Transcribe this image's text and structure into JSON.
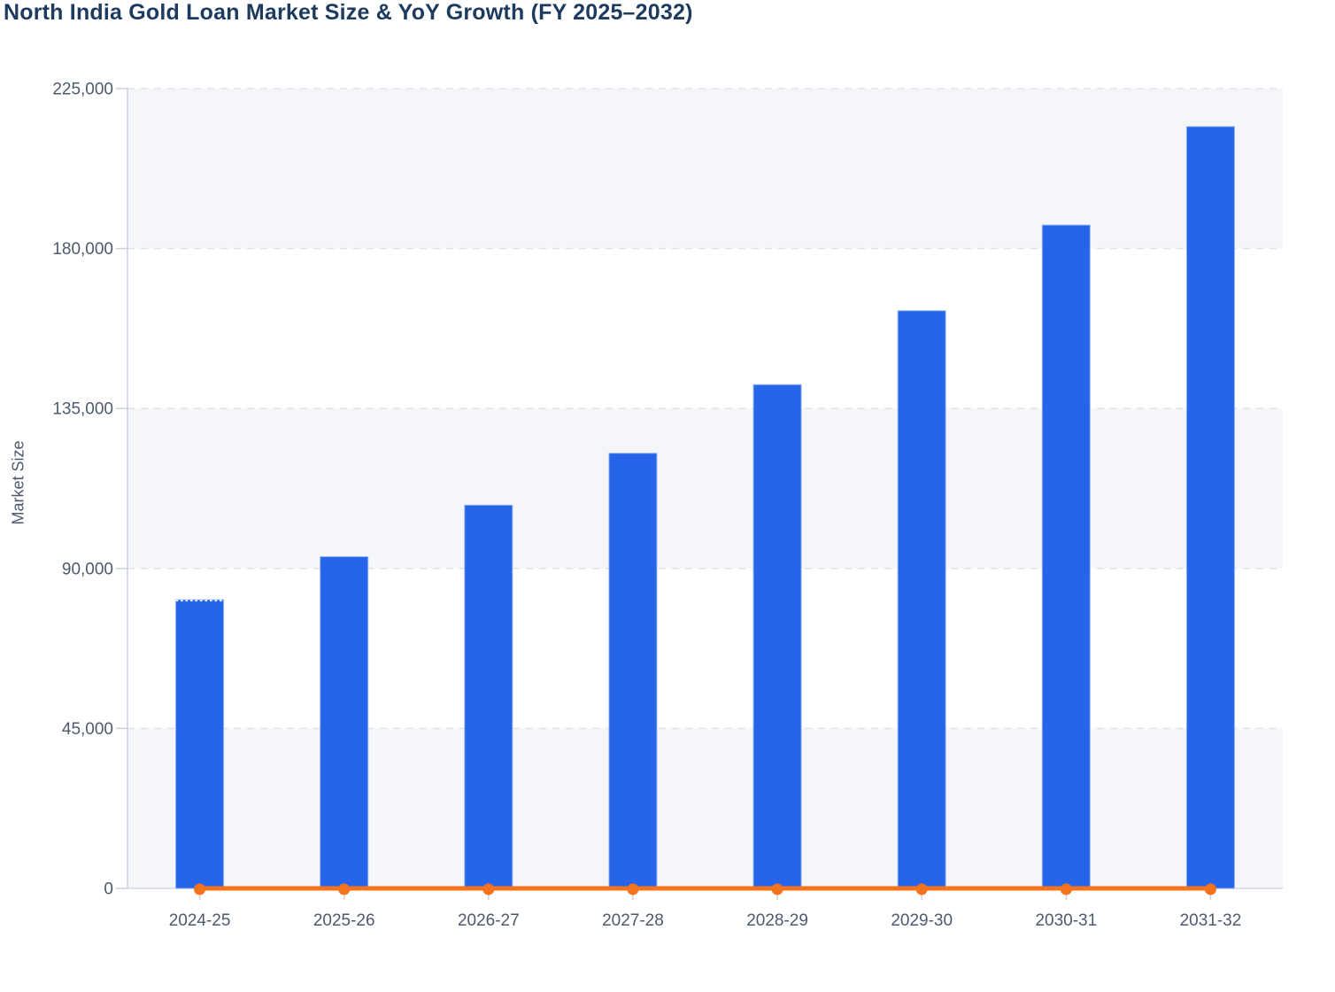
{
  "chart_data": {
    "type": "bar",
    "title": "North India Gold Loan Market Size & YoY Growth (FY 2025–2032)",
    "xlabel": "",
    "ylabel": "Market Size",
    "categories": [
      "2024-25",
      "2025-26",
      "2026-27",
      "2027-28",
      "2028-29",
      "2029-30",
      "2030-31",
      "2031-32"
    ],
    "series": [
      {
        "name": "Market Size",
        "type": "bar",
        "color": "#2664ea",
        "values": [
          81200,
          93300,
          107800,
          122400,
          141700,
          162500,
          186600,
          214300
        ]
      },
      {
        "name": "YoY Growth",
        "type": "line",
        "color": "#f4731c",
        "values_on_axis": [
          0,
          0,
          0,
          0,
          0,
          0,
          0,
          0
        ],
        "note": "line renders flat along the zero baseline with a round marker at each fiscal year; growth % not resolvable on the Market Size axis scale"
      }
    ],
    "y_axis": {
      "min": 0,
      "max": 225000,
      "tick_interval": 45000,
      "tick_values": [
        0,
        45000,
        90000,
        135000,
        180000,
        225000
      ],
      "tick_labels": [
        "0",
        "45,000",
        "90,000",
        "135,000",
        "180,000",
        "225,000"
      ]
    },
    "legend": "none",
    "grid": "horizontal dashed lines at each y tick; alternating shaded plot bands",
    "styles": {
      "title_color": "#1d3a5f",
      "label_color": "#4d5a6e",
      "band_fill": "#f4f6fa",
      "grid_color": "#e2e3e9",
      "y_axis_line_color": "#c9d0e8",
      "baseline_color": "#d3d7e0",
      "tick_color": "#ccd2dc",
      "bar_edge_color": "#8fb0f2"
    }
  }
}
